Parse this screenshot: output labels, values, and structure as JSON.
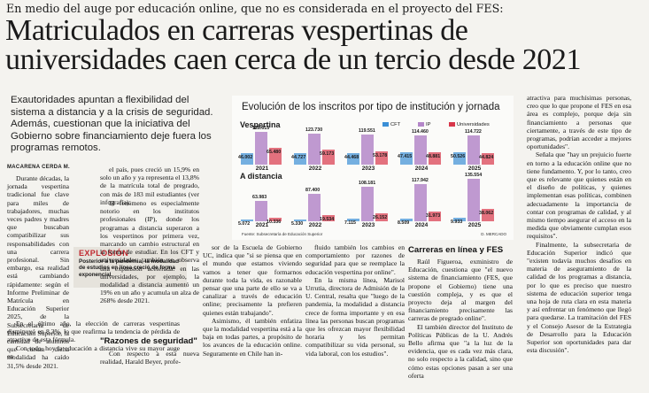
{
  "article": {
    "kicker": "En medio del auge por educación online, que no es considerada en el proyecto del FES:",
    "headline_line1": "Matriculados en carreras vespertinas de",
    "headline_line2": "universidades caen cerca de un tercio desde 2021",
    "subtitle": "Exautoridades apuntan a flexibilidad del sistema a distancia y a la crisis de seguridad. Además, cuestionan que la iniciativa del Gobierno sobre financiamiento deje fuera los programas remotos.",
    "byline": "MACARENA CERDA M.",
    "col1_text": "Durante décadas, la jornada vespertina tradicional fue clave para miles de trabajadores, muchas veces padres y madres que buscaban compatibilizar sus responsabilidades con una carrera profesional. Sin embargo, esa realidad está cambiando rápidamente: según el Informe Preliminar de Matrícula en Educación Superior 2025, de la Subsecretaría de Educación Superior, la cantidad de alumnos que cursan dicha modalidad ha caído 31,5% desde 2021.",
    "col1_text2": "En el último año, la elección de carreras vespertinas disminuyó en 8,3%, lo que reafirma la tendencia de pérdida de atractivo de esta fórmula.",
    "col1_text3": "Con todo, hoy la educación a distancia vive su mayor auge en",
    "col2_text": "el país, pues creció un 15,9% en solo un año y ya representa el 13,8% de la matrícula total de pregrado, con más de 183 mil estudiantes (ver infografía).",
    "col2_text2": "El fenómeno es especialmente notorio en los institutos profesionales (IP), donde los programas a distancia superaron a los vespertinos por primera vez, marcando un cambio estructural en la forma de estudiar. En los CFT y universidades también se observa una expansión acelerada: en las universidades, por ejemplo, la modalidad a distancia aumentó un 19% en un año y acumula un alza de 268% desde 2021.",
    "col2_heading": "\"Razones de seguridad\"",
    "col2_text3": "Con respecto a esta nueva realidad, Harald Beyer, profe-",
    "col3_text": "sor de la Escuela de Gobierno UC, indica que \"si se piensa que en el mundo que estamos viviendo vamos a tener que formarnos durante toda la vida, es razonable pensar que una parte de ello se va a canalizar a través de educación online; precisamente la prefieren quienes están trabajando\".",
    "col3_text2": "Asimismo, él también enfatiza que la modalidad vespertina está a la baja en todas partes, a propósito de los avances de la educación online. Seguramente en Chile han in-",
    "col4_text": "fluido también los cambios en comportamiento por razones de seguridad para que se reemplace la educación vespertina por online\".",
    "col4_text2": "En la misma línea, Marisol Urrutia, directora de Admisión de la U. Central, resalta que \"luego de la pandemia, la modalidad a distancia crece de forma importante y en esa línea las personas buscan programas que les ofrezcan mayor flexibilidad horaria y les permitan compatibilizar su vida personal, su vida laboral, con los estudios\".",
    "col5_heading": "Carreras en línea y FES",
    "col5_text": "Raúl Figueroa, exministro de Educación, cuestiona que \"el nuevo sistema de financiamiento (FES, que propone el Gobierno) tiene una cuestión compleja, y es que el proyecto deja al margen del financiamiento precisamente las carreras de pregrado online\".",
    "col5_text2": "El también director del Instituto de Políticas Públicas de la U. Andrés Bello afirma que \"a la luz de la evidencia, que es cada vez más clara, no solo respecto a la calidad, sino que cómo estas opciones pasan a ser una oferta",
    "col6_text": "atractiva para muchísimas personas, creo que lo que propone el FES en esa área es complejo, porque deja sin financiamiento a personas que ciertamente, a través de este tipo de programas, podrían acceder a mejores oportunidades\".",
    "col6_text2": "Señala que \"hay un prejuicio fuerte en torno a la educación online que no tiene fundamento. Y, por lo tanto, creo que es relevante que quienes están en el diseño de políticas, y quienes implementan esas políticas, combinen adecuadamente la importancia de contar con programas de calidad, y al mismo tiempo asegurar el acceso en la medida que obviamente cumplan esos requisitos\".",
    "col6_text3": "Finalmente, la subsecretaria de Educación Superior indicó que \"existen todavía muchos desafíos en materia de aseguramiento de la calidad de los programas a distancia, por lo que es preciso que nuestro sistema de educación superior tenga una hoja de ruta clara en esta materia y así enfrentar un fenómeno que llegó para quedarse. La tramitación del FES y el Consejo Asesor de la Estrategia de Desarrollo para la Educación Superior son oportunidades para dar esta discusión\"."
  },
  "callout": {
    "title": "EXPLOSIÓN",
    "body": "Posterior a la pandemia, la modalidad de estudios en línea creció de forma exponencial."
  },
  "chart_data": {
    "type": "bar",
    "title": "Evolución de los inscritos por tipo de institución y jornada",
    "categories": [
      "2021",
      "2022",
      "2023",
      "2024",
      "2025"
    ],
    "legend": [
      "CFT",
      "IP",
      "Universidades"
    ],
    "colors": {
      "CFT": "#3a8fd6",
      "IP": "#b487c9",
      "Universidades": "#d8364a"
    },
    "panels": [
      {
        "name": "Vespertina",
        "series": [
          {
            "name": "CFT",
            "values": [
              46002,
              44727,
              44468,
              47415,
              50526
            ]
          },
          {
            "name": "IP",
            "values": [
              128615,
              123730,
              119551,
              114460,
              114722
            ]
          },
          {
            "name": "Universidades",
            "values": [
              65480,
              59173,
              53178,
              48881,
              44824
            ]
          }
        ]
      },
      {
        "name": "A distancia",
        "series": [
          {
            "name": "CFT",
            "values": [
              5072,
              5330,
              7115,
              8509,
              9933
            ]
          },
          {
            "name": "IP",
            "values": [
              63983,
              87400,
              108181,
              117942,
              135554
            ]
          },
          {
            "name": "Universidades",
            "values": [
              10336,
              19534,
              26152,
              31973,
              38062
            ]
          }
        ]
      }
    ],
    "labels": {
      "vespertina": {
        "CFT": [
          "46.002",
          "44.727",
          "44.468",
          "47.415",
          "50.526"
        ],
        "IP": [
          "128.615",
          "123.730",
          "119.551",
          "114.460",
          "114.722"
        ],
        "Universidades": [
          "65.480",
          "59.173",
          "53.178",
          "48.881",
          "44.824"
        ]
      },
      "distancia": {
        "CFT": [
          "5.072",
          "5.330",
          "7.115",
          "8.509",
          "9.933"
        ],
        "IP": [
          "63.983",
          "87.400",
          "108.181",
          "117.942",
          "135.554"
        ],
        "Universidades": [
          "10.336",
          "19.534",
          "26.152",
          "31.973",
          "38.062"
        ]
      }
    },
    "source": "Fuente: Subsecretaría de Educación Superior",
    "credit": "D. MERCADO"
  }
}
